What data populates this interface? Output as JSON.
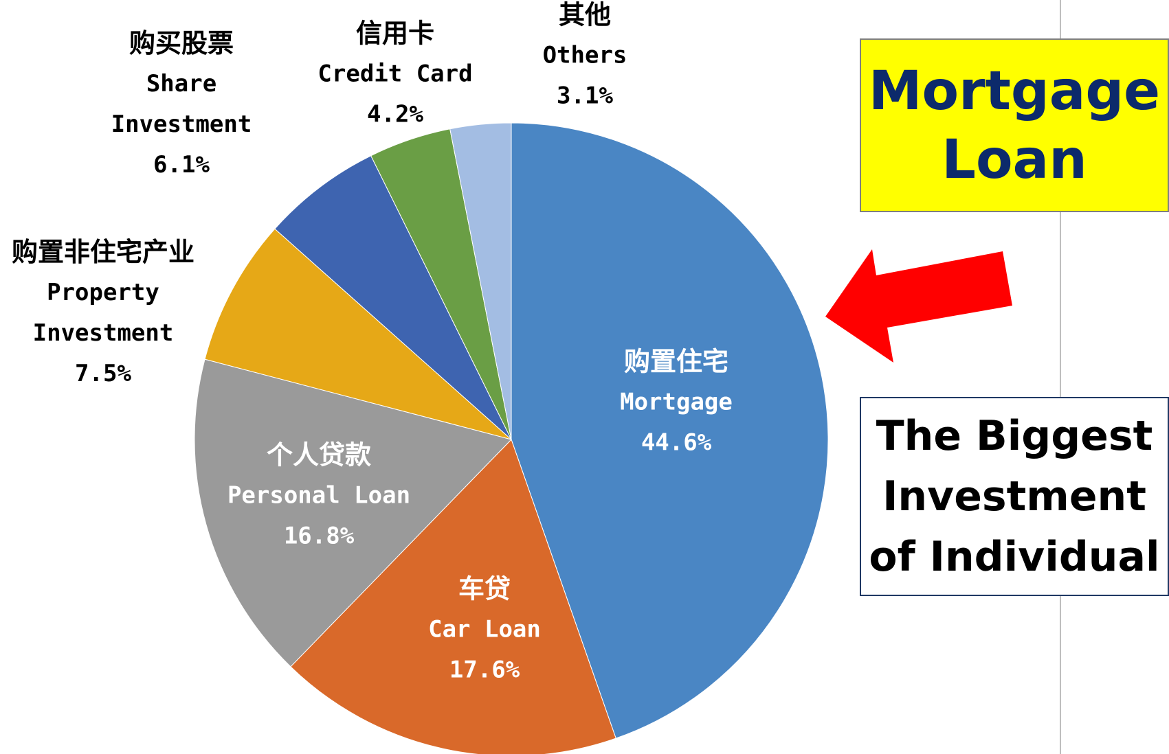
{
  "chart_data": {
    "type": "pie",
    "categories_zh": [
      "购置住宅",
      "车贷",
      "个人贷款",
      "购置非住宅产业",
      "购买股票",
      "信用卡",
      "其他"
    ],
    "categories": [
      "Mortgage",
      "Car Loan",
      "Personal Loan",
      "Property Investment",
      "Share Investment",
      "Credit Card",
      "Others"
    ],
    "values": [
      44.6,
      17.6,
      16.8,
      7.5,
      6.1,
      4.2,
      3.1
    ],
    "value_labels": [
      "44.6%",
      "17.6%",
      "16.8%",
      "7.5%",
      "6.1%",
      "4.2%",
      "3.1%"
    ],
    "colors": [
      "#4a86c4",
      "#d9692a",
      "#9a9a9a",
      "#e6a817",
      "#3e64b0",
      "#6a9e45",
      "#a3bde3"
    ],
    "annotations": [
      "Mortgage Loan",
      "The Biggest Investment of Individual"
    ]
  }
}
